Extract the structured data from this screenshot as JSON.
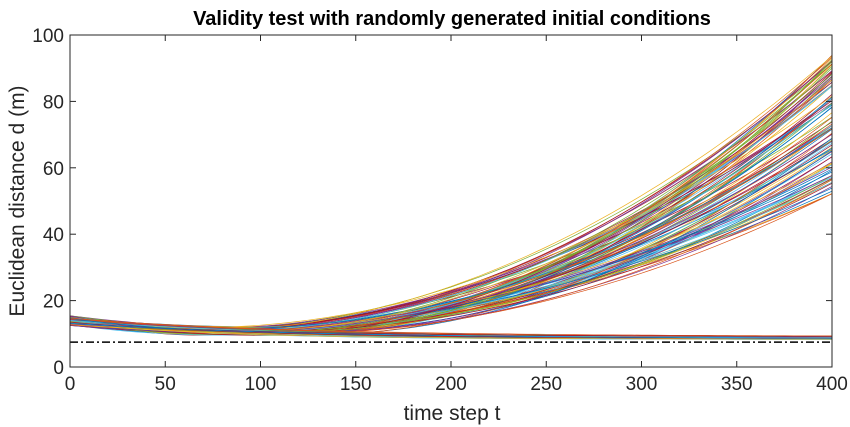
{
  "chart_data": {
    "type": "line",
    "title": "Validity test with randomly generated initial conditions",
    "xlabel": "time step t",
    "ylabel": "Euclidean distance  d (m)",
    "xlim": [
      0,
      400
    ],
    "ylim": [
      0,
      100
    ],
    "xticks": [
      "0",
      "50",
      "100",
      "150",
      "200",
      "250",
      "300",
      "350",
      "400"
    ],
    "yticks": [
      "0",
      "20",
      "40",
      "60",
      "80",
      "100"
    ],
    "grid": false,
    "legend": "none",
    "series_groups": [
      {
        "description_values": "diverging trajectories",
        "count": 110,
        "start_range": [
          12.5,
          15.5
        ],
        "min_range": [
          9.5,
          12
        ],
        "min_time_range": [
          60,
          130
        ],
        "end_range": [
          52,
          94
        ]
      },
      {
        "description_values": "converging trajectories",
        "count": 45,
        "start_range": [
          12.5,
          15
        ],
        "end_range": [
          8.2,
          9.2
        ]
      }
    ],
    "reference_line": {
      "y": 7.5,
      "style": "dash-dot",
      "color": "#000000"
    },
    "colors": [
      "#0072BD",
      "#D95319",
      "#EDB120",
      "#7E2F8E",
      "#77AC30",
      "#4DBEEE",
      "#A2142F"
    ]
  }
}
